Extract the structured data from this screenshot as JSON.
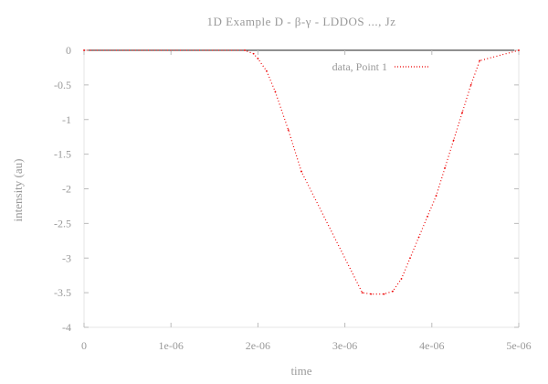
{
  "chart_data": {
    "type": "line",
    "title": "1D Example D - β-γ - LDDOS ..., Jz",
    "xlabel": "time",
    "ylabel": "intensity (au)",
    "xlim": [
      0,
      5e-06
    ],
    "ylim": [
      -4,
      0
    ],
    "x_ticks": [
      "0",
      "1e-06",
      "2e-06",
      "3e-06",
      "4e-06",
      "5e-06"
    ],
    "y_ticks": [
      "0",
      "-0.5",
      "-1",
      "-1.5",
      "-2",
      "-2.5",
      "-3",
      "-3.5",
      "-4"
    ],
    "grid": false,
    "legend_position": "top-right",
    "series": [
      {
        "name": "data, Point 1",
        "color": "#ee0000",
        "x": [
          0,
          1.85e-06,
          1.95e-06,
          2e-06,
          2.1e-06,
          2.2e-06,
          2.35e-06,
          2.5e-06,
          3.2e-06,
          3.3e-06,
          3.45e-06,
          3.55e-06,
          3.65e-06,
          3.75e-06,
          3.85e-06,
          3.95e-06,
          4.05e-06,
          4.15e-06,
          4.25e-06,
          4.35e-06,
          4.45e-06,
          4.55e-06,
          5e-06
        ],
        "y": [
          0,
          0,
          -0.05,
          -0.12,
          -0.3,
          -0.6,
          -1.15,
          -1.75,
          -3.5,
          -3.52,
          -3.52,
          -3.48,
          -3.3,
          -3.0,
          -2.7,
          -2.4,
          -2.1,
          -1.7,
          -1.3,
          -0.9,
          -0.5,
          -0.15,
          0
        ]
      }
    ]
  }
}
